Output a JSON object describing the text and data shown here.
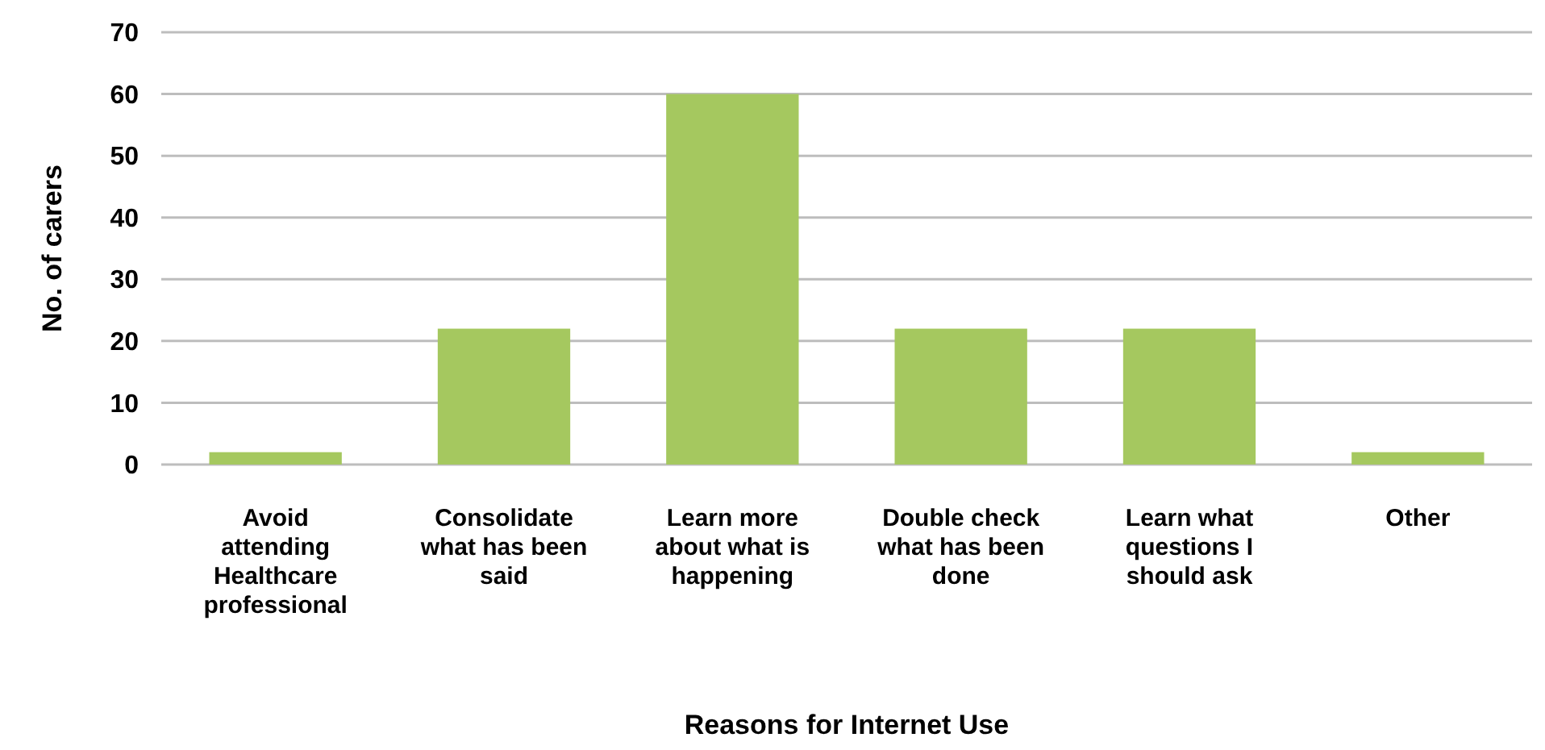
{
  "chart_data": {
    "type": "bar",
    "xlabel": "Reasons for Internet Use",
    "ylabel": "No. of carers",
    "categories": [
      "Avoid attending Healthcare professional",
      "Consolidate what has been said",
      "Learn more about what is happening",
      "Double check what has been done",
      "Learn what questions I should ask",
      "Other"
    ],
    "values": [
      2,
      22,
      60,
      22,
      22,
      2
    ],
    "color": "#a5c85f",
    "ylim": [
      0,
      70
    ],
    "yticks": [
      0,
      10,
      20,
      30,
      40,
      50,
      60,
      70
    ],
    "grid": "y"
  }
}
